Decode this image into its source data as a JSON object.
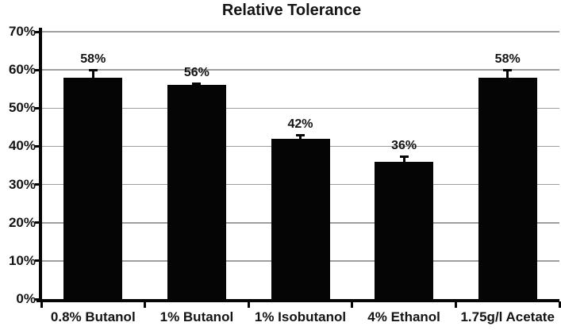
{
  "chart_data": {
    "type": "bar",
    "title": "Relative Tolerance",
    "categories": [
      "0.8% Butanol",
      "1% Butanol",
      "1% Isobutanol",
      "4% Ethanol",
      "1.75g/l Acetate"
    ],
    "values": [
      58,
      56,
      42,
      36,
      58
    ],
    "errors_plus": [
      2,
      0.5,
      1,
      1.5,
      2
    ],
    "data_labels": [
      "58%",
      "56%",
      "42%",
      "36%",
      "58%"
    ],
    "ytick_labels": [
      "0%",
      "10%",
      "20%",
      "30%",
      "40%",
      "50%",
      "60%",
      "70%"
    ],
    "ylim": [
      0,
      70
    ],
    "ytick_step": 10,
    "xlabel": "",
    "ylabel": "",
    "grid": true,
    "legend": false,
    "bar_color": "#050505",
    "gridline_color": "#9e9e9e",
    "axis_color": "#050505",
    "text_color": "#141414"
  }
}
